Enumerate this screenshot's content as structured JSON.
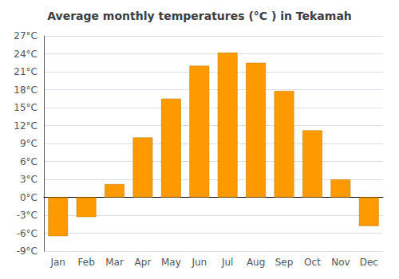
{
  "chart_data": {
    "type": "bar",
    "title": "Average monthly temperatures (°C ) in Tekamah",
    "categories": [
      "Jan",
      "Feb",
      "Mar",
      "Apr",
      "May",
      "Jun",
      "Jul",
      "Aug",
      "Sep",
      "Oct",
      "Nov",
      "Dec"
    ],
    "values": [
      -6.5,
      -3.3,
      2.2,
      10.0,
      16.5,
      22.0,
      24.2,
      22.5,
      17.8,
      11.2,
      3.0,
      -4.8
    ],
    "color": "#FF9900",
    "ylim": [
      -9,
      27
    ],
    "yticks": [
      {
        "value": -9,
        "label": "-9°C"
      },
      {
        "value": -6,
        "label": "-6°C"
      },
      {
        "value": -3,
        "label": "-3°C"
      },
      {
        "value": 0,
        "label": "0°C"
      },
      {
        "value": 3,
        "label": "3°C"
      },
      {
        "value": 6,
        "label": "6°C"
      },
      {
        "value": 9,
        "label": "9°C"
      },
      {
        "value": 12,
        "label": "12°C"
      },
      {
        "value": 15,
        "label": "15°C"
      },
      {
        "value": 18,
        "label": "18°C"
      },
      {
        "value": 21,
        "label": "21°C"
      },
      {
        "value": 24,
        "label": "24°C"
      },
      {
        "value": 27,
        "label": "27°C"
      }
    ],
    "grid": true
  }
}
